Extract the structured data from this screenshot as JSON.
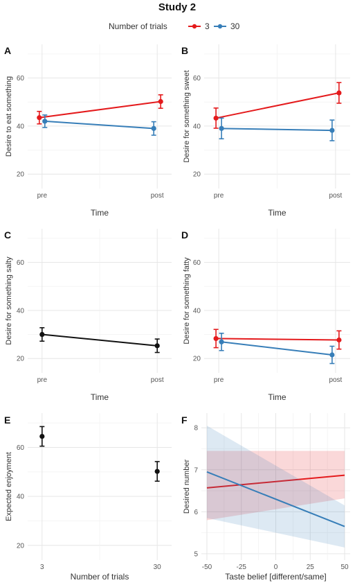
{
  "title": "Study 2",
  "legend": {
    "title": "Number of trials",
    "entries": [
      {
        "label": "3",
        "color": "#e41a1c"
      },
      {
        "label": "30",
        "color": "#377eb8"
      }
    ]
  },
  "colors": {
    "red": "#e41a1c",
    "blue": "#377eb8",
    "black": "#111111"
  },
  "chart_data": [
    {
      "panel": "A",
      "type": "line",
      "xlabel": "Time",
      "ylabel": "Desire to eat something",
      "categories": [
        "pre",
        "post"
      ],
      "yticks": [
        20,
        40,
        60
      ],
      "ylim": [
        14,
        74
      ],
      "series": [
        {
          "name": "3",
          "color": "#e41a1c",
          "values": [
            43.5,
            50.2
          ],
          "err": [
            2.6,
            2.8
          ]
        },
        {
          "name": "30",
          "color": "#377eb8",
          "values": [
            42.0,
            39.0
          ],
          "err": [
            2.6,
            2.8
          ]
        }
      ]
    },
    {
      "panel": "B",
      "type": "line",
      "xlabel": "Time",
      "ylabel": "Desire for something sweet",
      "categories": [
        "pre",
        "post"
      ],
      "yticks": [
        20,
        40,
        60
      ],
      "ylim": [
        14,
        74
      ],
      "series": [
        {
          "name": "3",
          "color": "#e41a1c",
          "values": [
            43.3,
            53.8
          ],
          "err": [
            4.2,
            4.3
          ]
        },
        {
          "name": "30",
          "color": "#377eb8",
          "values": [
            39.0,
            38.2
          ],
          "err": [
            4.3,
            4.3
          ]
        }
      ]
    },
    {
      "panel": "C",
      "type": "line",
      "xlabel": "Time",
      "ylabel": "Desire for something salty",
      "categories": [
        "pre",
        "post"
      ],
      "yticks": [
        20,
        40,
        60
      ],
      "ylim": [
        14,
        74
      ],
      "series": [
        {
          "name": "",
          "color": "#111111",
          "values": [
            30.0,
            25.3
          ],
          "err": [
            2.8,
            2.8
          ]
        }
      ]
    },
    {
      "panel": "D",
      "type": "line",
      "xlabel": "Time",
      "ylabel": "Desire for something fatty",
      "categories": [
        "pre",
        "post"
      ],
      "yticks": [
        20,
        40,
        60
      ],
      "ylim": [
        14,
        74
      ],
      "series": [
        {
          "name": "3",
          "color": "#e41a1c",
          "values": [
            28.3,
            27.7
          ],
          "err": [
            3.8,
            3.8
          ]
        },
        {
          "name": "30",
          "color": "#377eb8",
          "values": [
            26.9,
            21.5
          ],
          "err": [
            3.6,
            3.6
          ]
        }
      ]
    },
    {
      "panel": "E",
      "type": "scatter",
      "xlabel": "Number of trials",
      "ylabel": "Expected enjoyment",
      "categories": [
        "3",
        "30"
      ],
      "yticks": [
        20,
        40,
        60
      ],
      "ylim": [
        14,
        74
      ],
      "series": [
        {
          "name": "",
          "color": "#111111",
          "values": [
            64.5,
            50.2
          ],
          "err": [
            4.0,
            4.0
          ]
        }
      ]
    },
    {
      "panel": "F",
      "type": "line",
      "xlabel": "Taste belief [different/same]",
      "ylabel": "Desired number",
      "xticks": [
        -50,
        -25,
        0,
        25,
        50
      ],
      "xlim": [
        -54,
        54
      ],
      "yticks": [
        5,
        6,
        7,
        8
      ],
      "ylim": [
        4.85,
        8.35
      ],
      "series": [
        {
          "name": "3",
          "color": "#e41a1c",
          "x": [
            -50,
            50
          ],
          "y": [
            6.57,
            6.87
          ],
          "lower": [
            5.8,
            6.32
          ],
          "upper": [
            7.45,
            7.45
          ]
        },
        {
          "name": "30",
          "color": "#377eb8",
          "x": [
            -50,
            50
          ],
          "y": [
            6.95,
            5.65
          ],
          "lower": [
            5.85,
            5.15
          ],
          "upper": [
            8.05,
            6.15
          ]
        }
      ]
    }
  ]
}
